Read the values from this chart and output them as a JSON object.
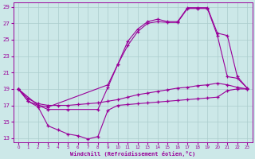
{
  "background_color": "#cce8e8",
  "grid_color": "#aacccc",
  "line_color": "#990099",
  "xlabel": "Windchill (Refroidissement éolien,°C)",
  "xlim": [
    -0.5,
    23.5
  ],
  "ylim": [
    12.5,
    29.5
  ],
  "yticks": [
    13,
    15,
    17,
    19,
    21,
    23,
    25,
    27,
    29
  ],
  "xticks": [
    0,
    1,
    2,
    3,
    4,
    5,
    6,
    7,
    8,
    9,
    10,
    11,
    12,
    13,
    14,
    15,
    16,
    17,
    18,
    19,
    20,
    21,
    22,
    23
  ],
  "curves": [
    {
      "x": [
        0,
        1,
        2,
        3,
        4,
        5,
        6,
        7,
        8,
        9,
        10,
        11,
        12,
        13,
        14,
        15,
        16,
        17,
        18,
        19,
        20,
        21,
        22,
        23
      ],
      "y": [
        19,
        17.5,
        16.8,
        14.5,
        14.0,
        13.5,
        13.3,
        12.9,
        13.2,
        16.4,
        17.0,
        17.1,
        17.2,
        17.3,
        17.4,
        17.5,
        17.6,
        17.7,
        17.8,
        17.9,
        18.0,
        18.8,
        19.0,
        19.0
      ]
    },
    {
      "x": [
        0,
        1,
        2,
        3,
        4,
        5,
        6,
        7,
        8,
        9,
        10,
        11,
        12,
        13,
        14,
        15,
        16,
        17,
        18,
        19,
        20,
        21,
        22,
        23
      ],
      "y": [
        19.0,
        17.8,
        17.2,
        17.0,
        17.0,
        17.0,
        17.1,
        17.2,
        17.3,
        17.5,
        17.7,
        18.0,
        18.3,
        18.5,
        18.7,
        18.9,
        19.1,
        19.2,
        19.4,
        19.5,
        19.7,
        19.5,
        19.2,
        19.0
      ]
    },
    {
      "x": [
        0,
        1,
        2,
        3,
        9,
        10,
        11,
        12,
        13,
        14,
        15,
        16,
        17,
        18,
        19,
        20,
        21,
        22,
        23
      ],
      "y": [
        19.0,
        17.5,
        17.0,
        16.8,
        19.5,
        22.0,
        24.3,
        26.0,
        27.0,
        27.2,
        27.1,
        27.1,
        28.8,
        28.8,
        28.8,
        25.5,
        20.5,
        20.3,
        19.1
      ]
    },
    {
      "x": [
        0,
        2,
        3,
        5,
        8,
        9,
        10,
        11,
        12,
        13,
        14,
        15,
        16,
        17,
        18,
        19,
        20,
        21,
        22,
        23
      ],
      "y": [
        19.0,
        17.0,
        16.5,
        16.5,
        16.5,
        19.2,
        22.0,
        24.8,
        26.3,
        27.2,
        27.5,
        27.2,
        27.2,
        28.9,
        28.9,
        28.9,
        25.8,
        25.5,
        20.5,
        19.1
      ]
    }
  ]
}
